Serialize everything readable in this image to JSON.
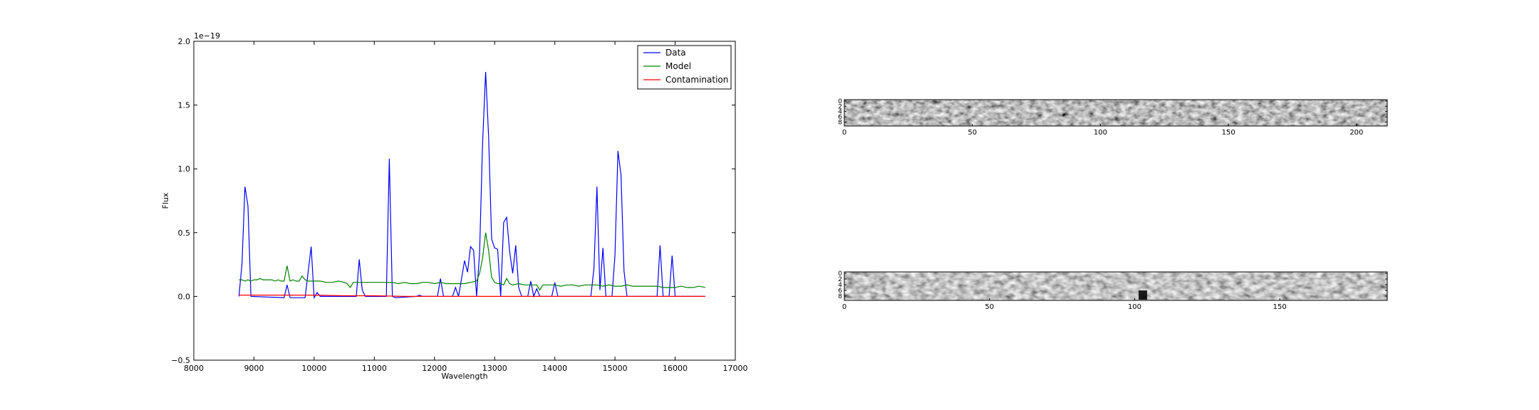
{
  "chart_data": [
    {
      "type": "line",
      "title": "",
      "xlabel": "Wavelength",
      "ylabel": "Flux",
      "offset_text": "1e−19",
      "xlim": [
        8000,
        17000
      ],
      "ylim": [
        -0.5,
        2.0
      ],
      "xticks": [
        8000,
        9000,
        10000,
        11000,
        12000,
        13000,
        14000,
        15000,
        16000,
        17000
      ],
      "xtick_labels": [
        "8000",
        "9000",
        "10000",
        "11000",
        "12000",
        "13000",
        "14000",
        "15000",
        "16000",
        "17000"
      ],
      "yticks": [
        -0.5,
        0.0,
        0.5,
        1.0,
        1.5,
        2.0
      ],
      "ytick_labels": [
        "−0.5",
        "0.0",
        "0.5",
        "1.0",
        "1.5",
        "2.0"
      ],
      "grid": false,
      "legend_position": "top-right",
      "series": [
        {
          "name": "Data",
          "color": "#0000ff",
          "points": [
            [
              8750,
              0.0
            ],
            [
              8800,
              0.25
            ],
            [
              8850,
              0.86
            ],
            [
              8900,
              0.71
            ],
            [
              8950,
              0.0
            ],
            [
              9500,
              -0.01
            ],
            [
              9550,
              0.09
            ],
            [
              9600,
              -0.01
            ],
            [
              9850,
              -0.01
            ],
            [
              9950,
              0.39
            ],
            [
              10000,
              -0.01
            ],
            [
              10050,
              0.03
            ],
            [
              10100,
              0.0
            ],
            [
              10700,
              0.0
            ],
            [
              10750,
              0.29
            ],
            [
              10800,
              0.05
            ],
            [
              10850,
              0.0
            ],
            [
              11200,
              0.0
            ],
            [
              11250,
              1.08
            ],
            [
              11300,
              0.0
            ],
            [
              11350,
              -0.01
            ],
            [
              11700,
              0.0
            ],
            [
              11750,
              0.01
            ],
            [
              11800,
              0.0
            ],
            [
              12050,
              0.0
            ],
            [
              12100,
              0.14
            ],
            [
              12150,
              0.0
            ],
            [
              12300,
              0.0
            ],
            [
              12350,
              0.07
            ],
            [
              12400,
              0.0
            ],
            [
              12500,
              0.28
            ],
            [
              12550,
              0.19
            ],
            [
              12600,
              0.39
            ],
            [
              12650,
              0.36
            ],
            [
              12700,
              0.0
            ],
            [
              12750,
              0.34
            ],
            [
              12800,
              1.2
            ],
            [
              12850,
              1.76
            ],
            [
              12900,
              1.25
            ],
            [
              12950,
              0.45
            ],
            [
              13000,
              0.38
            ],
            [
              13050,
              0.37
            ],
            [
              13100,
              0.0
            ],
            [
              13150,
              0.58
            ],
            [
              13200,
              0.62
            ],
            [
              13250,
              0.35
            ],
            [
              13300,
              0.18
            ],
            [
              13350,
              0.4
            ],
            [
              13400,
              0.07
            ],
            [
              13450,
              0.0
            ],
            [
              13550,
              0.0
            ],
            [
              13600,
              0.12
            ],
            [
              13650,
              0.0
            ],
            [
              13700,
              0.06
            ],
            [
              13750,
              0.0
            ],
            [
              13950,
              0.0
            ],
            [
              14000,
              0.11
            ],
            [
              14050,
              0.0
            ],
            [
              14600,
              0.0
            ],
            [
              14650,
              0.22
            ],
            [
              14700,
              0.86
            ],
            [
              14750,
              0.05
            ],
            [
              14800,
              0.38
            ],
            [
              14850,
              0.0
            ],
            [
              14950,
              0.0
            ],
            [
              15000,
              0.32
            ],
            [
              15050,
              1.14
            ],
            [
              15100,
              0.95
            ],
            [
              15150,
              0.2
            ],
            [
              15200,
              0.0
            ],
            [
              15700,
              0.0
            ],
            [
              15750,
              0.4
            ],
            [
              15800,
              0.0
            ],
            [
              15900,
              0.0
            ],
            [
              15950,
              0.32
            ],
            [
              16000,
              0.0
            ],
            [
              16500,
              0.0
            ]
          ]
        },
        {
          "name": "Model",
          "color": "#008000",
          "points": [
            [
              8750,
              0.13
            ],
            [
              8800,
              0.13
            ],
            [
              8850,
              0.12
            ],
            [
              8900,
              0.13
            ],
            [
              8950,
              0.12
            ],
            [
              9000,
              0.13
            ],
            [
              9050,
              0.13
            ],
            [
              9100,
              0.14
            ],
            [
              9150,
              0.13
            ],
            [
              9200,
              0.13
            ],
            [
              9300,
              0.13
            ],
            [
              9350,
              0.12
            ],
            [
              9400,
              0.13
            ],
            [
              9450,
              0.12
            ],
            [
              9500,
              0.12
            ],
            [
              9550,
              0.24
            ],
            [
              9600,
              0.12
            ],
            [
              9650,
              0.13
            ],
            [
              9700,
              0.12
            ],
            [
              9750,
              0.12
            ],
            [
              9800,
              0.16
            ],
            [
              9850,
              0.13
            ],
            [
              9900,
              0.12
            ],
            [
              9950,
              0.12
            ],
            [
              10000,
              0.12
            ],
            [
              10100,
              0.12
            ],
            [
              10200,
              0.11
            ],
            [
              10300,
              0.11
            ],
            [
              10400,
              0.12
            ],
            [
              10500,
              0.11
            ],
            [
              10550,
              0.1
            ],
            [
              10600,
              0.07
            ],
            [
              10650,
              0.11
            ],
            [
              10700,
              0.11
            ],
            [
              10800,
              0.11
            ],
            [
              10900,
              0.11
            ],
            [
              11000,
              0.11
            ],
            [
              11100,
              0.11
            ],
            [
              11200,
              0.11
            ],
            [
              11300,
              0.11
            ],
            [
              11400,
              0.1
            ],
            [
              11500,
              0.11
            ],
            [
              11600,
              0.1
            ],
            [
              11700,
              0.1
            ],
            [
              11800,
              0.11
            ],
            [
              11900,
              0.11
            ],
            [
              12000,
              0.1
            ],
            [
              12100,
              0.11
            ],
            [
              12200,
              0.1
            ],
            [
              12300,
              0.1
            ],
            [
              12400,
              0.1
            ],
            [
              12500,
              0.1
            ],
            [
              12600,
              0.11
            ],
            [
              12700,
              0.12
            ],
            [
              12750,
              0.18
            ],
            [
              12800,
              0.3
            ],
            [
              12850,
              0.5
            ],
            [
              12900,
              0.36
            ],
            [
              12950,
              0.15
            ],
            [
              13000,
              0.11
            ],
            [
              13050,
              0.1
            ],
            [
              13100,
              0.1
            ],
            [
              13150,
              0.09
            ],
            [
              13200,
              0.14
            ],
            [
              13250,
              0.1
            ],
            [
              13300,
              0.09
            ],
            [
              13400,
              0.1
            ],
            [
              13500,
              0.09
            ],
            [
              13600,
              0.09
            ],
            [
              13700,
              0.09
            ],
            [
              13750,
              0.05
            ],
            [
              13800,
              0.09
            ],
            [
              13900,
              0.09
            ],
            [
              14000,
              0.09
            ],
            [
              14100,
              0.08
            ],
            [
              14200,
              0.09
            ],
            [
              14300,
              0.09
            ],
            [
              14400,
              0.08
            ],
            [
              14500,
              0.09
            ],
            [
              14600,
              0.09
            ],
            [
              14700,
              0.09
            ],
            [
              14800,
              0.08
            ],
            [
              14900,
              0.09
            ],
            [
              15000,
              0.08
            ],
            [
              15100,
              0.08
            ],
            [
              15200,
              0.09
            ],
            [
              15300,
              0.08
            ],
            [
              15400,
              0.08
            ],
            [
              15500,
              0.08
            ],
            [
              15600,
              0.08
            ],
            [
              15700,
              0.08
            ],
            [
              15800,
              0.07
            ],
            [
              15900,
              0.07
            ],
            [
              16000,
              0.07
            ],
            [
              16100,
              0.08
            ],
            [
              16200,
              0.07
            ],
            [
              16300,
              0.07
            ],
            [
              16400,
              0.08
            ],
            [
              16500,
              0.07
            ]
          ]
        },
        {
          "name": "Contamination",
          "color": "#ff0000",
          "points": [
            [
              8750,
              0.01
            ],
            [
              9000,
              0.01
            ],
            [
              9500,
              0.01
            ],
            [
              10000,
              0.01
            ],
            [
              10500,
              0.005
            ],
            [
              11000,
              0.005
            ],
            [
              11500,
              0.0
            ],
            [
              12000,
              0.0
            ],
            [
              12500,
              0.0
            ],
            [
              13000,
              0.0
            ],
            [
              13500,
              0.0
            ],
            [
              14000,
              0.0
            ],
            [
              14500,
              0.0
            ],
            [
              15000,
              0.0
            ],
            [
              15500,
              0.0
            ],
            [
              16000,
              0.0
            ],
            [
              16500,
              0.0
            ]
          ]
        }
      ]
    },
    {
      "type": "heatmap",
      "colormap": "grayscale",
      "xlim": [
        0,
        212
      ],
      "ylim": [
        10,
        0
      ],
      "xticks": [
        0,
        50,
        100,
        150,
        200
      ],
      "xtick_labels": [
        "0",
        "50",
        "100",
        "150",
        "200"
      ],
      "yticks": [
        0,
        2,
        4,
        6,
        8
      ],
      "ytick_labels": [
        "0",
        "2",
        "4",
        "6",
        "8"
      ]
    },
    {
      "type": "heatmap",
      "colormap": "grayscale",
      "xlim": [
        0,
        187
      ],
      "ylim": [
        10,
        0
      ],
      "xticks": [
        0,
        50,
        100,
        150
      ],
      "xtick_labels": [
        "0",
        "50",
        "100",
        "150"
      ],
      "yticks": [
        0,
        2,
        4,
        6,
        8
      ],
      "ytick_labels": [
        "0",
        "2",
        "4",
        "6",
        "8"
      ]
    }
  ]
}
